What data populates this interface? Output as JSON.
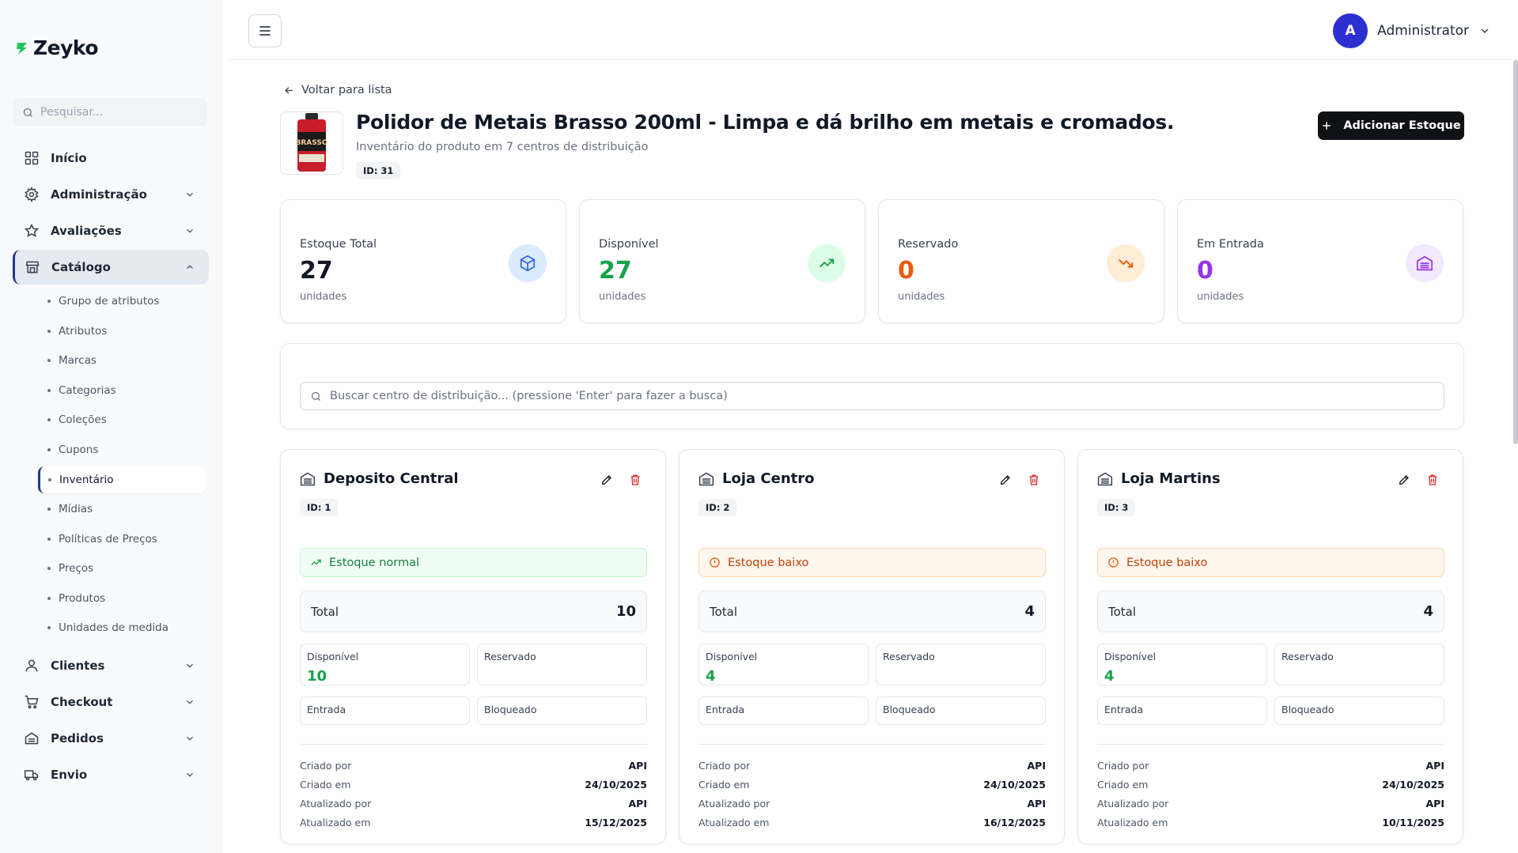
{
  "brand": {
    "name": "Zeyko"
  },
  "sidebar": {
    "search_placeholder": "Pesquisar...",
    "items": [
      {
        "label": "Início",
        "icon": "grid-icon"
      },
      {
        "label": "Administração",
        "icon": "gear-icon"
      },
      {
        "label": "Avaliações",
        "icon": "star-icon"
      },
      {
        "label": "Catálogo",
        "icon": "store-icon"
      },
      {
        "label": "Clientes",
        "icon": "user-icon"
      },
      {
        "label": "Checkout",
        "icon": "cart-icon"
      },
      {
        "label": "Pedidos",
        "icon": "package-icon"
      },
      {
        "label": "Envio",
        "icon": "truck-icon"
      }
    ],
    "catalog_sub": [
      "Grupo de atributos",
      "Atributos",
      "Marcas",
      "Categorias",
      "Coleções",
      "Cupons",
      "Inventário",
      "Mídias",
      "Políticas de Preços",
      "Preços",
      "Produtos",
      "Unidades de medida"
    ]
  },
  "header": {
    "user_initial": "A",
    "user_name": "Administrator"
  },
  "page": {
    "back_label": "Voltar para lista",
    "title": "Polidor de Metais Brasso 200ml - Limpa e dá brilho em metais e cromados.",
    "subtitle": "Inventário do produto em 7 centros de distribuição",
    "id_badge": "ID: 31",
    "add_button": "Adicionar Estoque",
    "product_image_label": "BRASSO"
  },
  "stats": [
    {
      "label": "Estoque Total",
      "value": "27",
      "unit": "unidades",
      "color": "#111827",
      "icon": "box-icon",
      "icon_bg": "#dbeafe",
      "icon_color": "#2563eb"
    },
    {
      "label": "Disponível",
      "value": "27",
      "unit": "unidades",
      "color": "#16a34a",
      "icon": "trending-up-icon",
      "icon_bg": "#dcfce7",
      "icon_color": "#16a34a"
    },
    {
      "label": "Reservado",
      "value": "0",
      "unit": "unidades",
      "color": "#ea580c",
      "icon": "trending-down-icon",
      "icon_bg": "#ffedd5",
      "icon_color": "#ea580c"
    },
    {
      "label": "Em Entrada",
      "value": "0",
      "unit": "unidades",
      "color": "#9333ea",
      "icon": "warehouse-icon",
      "icon_bg": "#f3e8ff",
      "icon_color": "#9333ea"
    }
  ],
  "dc_search_placeholder": "Buscar centro de distribuição... (pressione 'Enter' para fazer a busca)",
  "centers": [
    {
      "name": "Deposito Central",
      "id": "ID: 1",
      "status": "Estoque normal",
      "status_type": "ok",
      "total_label": "Total",
      "total": "10",
      "available_label": "Disponível",
      "available": "10",
      "reserved_label": "Reservado",
      "entry_label": "Entrada",
      "blocked_label": "Bloqueado",
      "created_by_label": "Criado por",
      "created_by": "API",
      "created_at_label": "Criado em",
      "created_at": "24/10/2025",
      "updated_by_label": "Atualizado por",
      "updated_by": "API",
      "updated_at_label": "Atualizado em",
      "updated_at": "15/12/2025"
    },
    {
      "name": "Loja Centro",
      "id": "ID: 2",
      "status": "Estoque baixo",
      "status_type": "low",
      "total_label": "Total",
      "total": "4",
      "available_label": "Disponível",
      "available": "4",
      "reserved_label": "Reservado",
      "entry_label": "Entrada",
      "blocked_label": "Bloqueado",
      "created_by_label": "Criado por",
      "created_by": "API",
      "created_at_label": "Criado em",
      "created_at": "24/10/2025",
      "updated_by_label": "Atualizado por",
      "updated_by": "API",
      "updated_at_label": "Atualizado em",
      "updated_at": "16/12/2025"
    },
    {
      "name": "Loja Martins",
      "id": "ID: 3",
      "status": "Estoque baixo",
      "status_type": "low",
      "total_label": "Total",
      "total": "4",
      "available_label": "Disponível",
      "available": "4",
      "reserved_label": "Reservado",
      "entry_label": "Entrada",
      "blocked_label": "Bloqueado",
      "created_by_label": "Criado por",
      "created_by": "API",
      "created_at_label": "Criado em",
      "created_at": "24/10/2025",
      "updated_by_label": "Atualizado por",
      "updated_by": "API",
      "updated_at_label": "Atualizado em",
      "updated_at": "10/11/2025"
    }
  ]
}
